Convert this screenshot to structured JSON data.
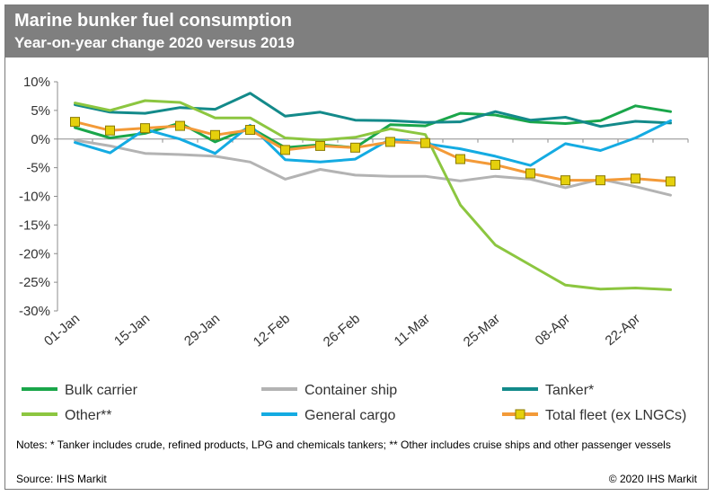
{
  "header": {
    "title": "Marine bunker fuel consumption",
    "subtitle": "Year-on-year change 2020 versus 2019"
  },
  "footer": {
    "notes": "Notes: * Tanker includes crude, refined products, LPG and chemicals tankers; ** Other includes cruise ships and other passenger vessels",
    "source": "Source: IHS Markit",
    "copyright": "© 2020 IHS Markit"
  },
  "chart_data": {
    "type": "line",
    "title": "Marine bunker fuel consumption",
    "subtitle": "Year-on-year change 2020 versus 2019",
    "x_tick_labels": [
      "01-Jan",
      "15-Jan",
      "29-Jan",
      "12-Feb",
      "26-Feb",
      "11-Mar",
      "25-Mar",
      "08-Apr",
      "22-Apr"
    ],
    "y_tick_labels": [
      "10%",
      "5%",
      "0%",
      "-5%",
      "-10%",
      "-15%",
      "-20%",
      "-25%",
      "-30%"
    ],
    "ylim": [
      -30,
      10
    ],
    "x": [
      "01-Jan",
      "08-Jan",
      "15-Jan",
      "22-Jan",
      "29-Jan",
      "05-Feb",
      "12-Feb",
      "19-Feb",
      "26-Feb",
      "04-Mar",
      "11-Mar",
      "18-Mar",
      "25-Mar",
      "01-Apr",
      "08-Apr",
      "15-Apr",
      "22-Apr",
      "29-Apr"
    ],
    "series": [
      {
        "name": "Bulk carrier",
        "color": "#1aa64a",
        "marker": false,
        "values": [
          2.0,
          0.2,
          1.0,
          2.8,
          -0.5,
          2.0,
          -1.5,
          -1.0,
          -1.5,
          2.5,
          2.3,
          4.5,
          4.2,
          3.0,
          2.7,
          3.2,
          5.8,
          4.8
        ]
      },
      {
        "name": "Container ship",
        "color": "#b3b3b3",
        "marker": false,
        "values": [
          -0.2,
          -1.2,
          -2.5,
          -2.7,
          -3.0,
          -4.0,
          -7.0,
          -5.3,
          -6.3,
          -6.5,
          -6.5,
          -7.3,
          -6.5,
          -7.0,
          -8.5,
          -7.0,
          -8.3,
          -9.8
        ]
      },
      {
        "name": "Tanker*",
        "color": "#138a8a",
        "marker": false,
        "values": [
          6.0,
          4.7,
          4.5,
          5.5,
          5.2,
          8.0,
          4.0,
          4.7,
          3.3,
          3.2,
          2.9,
          3.0,
          4.8,
          3.3,
          3.8,
          2.2,
          3.1,
          2.8
        ]
      },
      {
        "name": "Other**",
        "color": "#8cc640",
        "marker": false,
        "values": [
          6.3,
          5.0,
          6.7,
          6.4,
          3.7,
          3.7,
          0.2,
          -0.2,
          0.3,
          1.8,
          0.8,
          -11.5,
          -18.5,
          -22.0,
          -25.5,
          -26.2,
          -26.0,
          -26.3
        ]
      },
      {
        "name": "General cargo",
        "color": "#14abe2",
        "marker": false,
        "values": [
          -0.6,
          -2.4,
          1.7,
          0.0,
          -2.5,
          2.4,
          -3.6,
          -4.0,
          -3.5,
          0.0,
          -0.8,
          -1.7,
          -3.0,
          -4.6,
          -0.8,
          -2.0,
          0.2,
          3.2
        ]
      },
      {
        "name": "Total fleet (ex LNGCs)",
        "color": "#f39a38",
        "marker": true,
        "marker_color": "#e5d00c",
        "values": [
          3.0,
          1.5,
          1.9,
          2.3,
          0.7,
          1.6,
          -1.9,
          -1.2,
          -1.5,
          -0.5,
          -0.7,
          -3.5,
          -4.5,
          -6.0,
          -7.2,
          -7.2,
          -6.9,
          -7.4
        ]
      }
    ],
    "grid": false,
    "legend_position": "bottom"
  }
}
